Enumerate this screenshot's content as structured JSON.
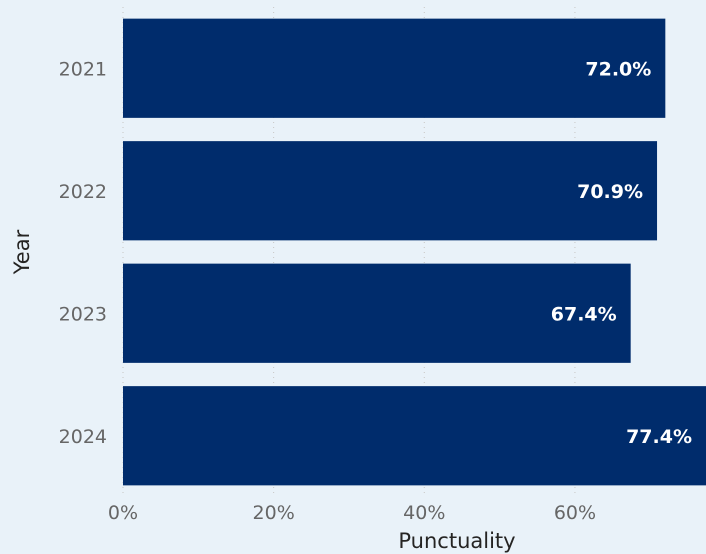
{
  "chart_data": {
    "type": "bar",
    "orientation": "horizontal",
    "categories": [
      "2021",
      "2022",
      "2023",
      "2024"
    ],
    "values": [
      72.0,
      70.9,
      67.4,
      77.4
    ],
    "data_labels": [
      "72.0%",
      "70.9%",
      "67.4%",
      "77.4%"
    ],
    "xlabel": "Punctuality",
    "ylabel": "Year",
    "xlim": [
      0,
      77.4
    ],
    "x_ticks": [
      "0%",
      "20%",
      "40%",
      "60%"
    ],
    "x_tick_values": [
      0,
      20,
      40,
      60
    ],
    "grid": true,
    "legend": "none"
  },
  "colors": {
    "bar": "#002c6c",
    "background": "#e9f2f9",
    "label": "#ffffff"
  }
}
